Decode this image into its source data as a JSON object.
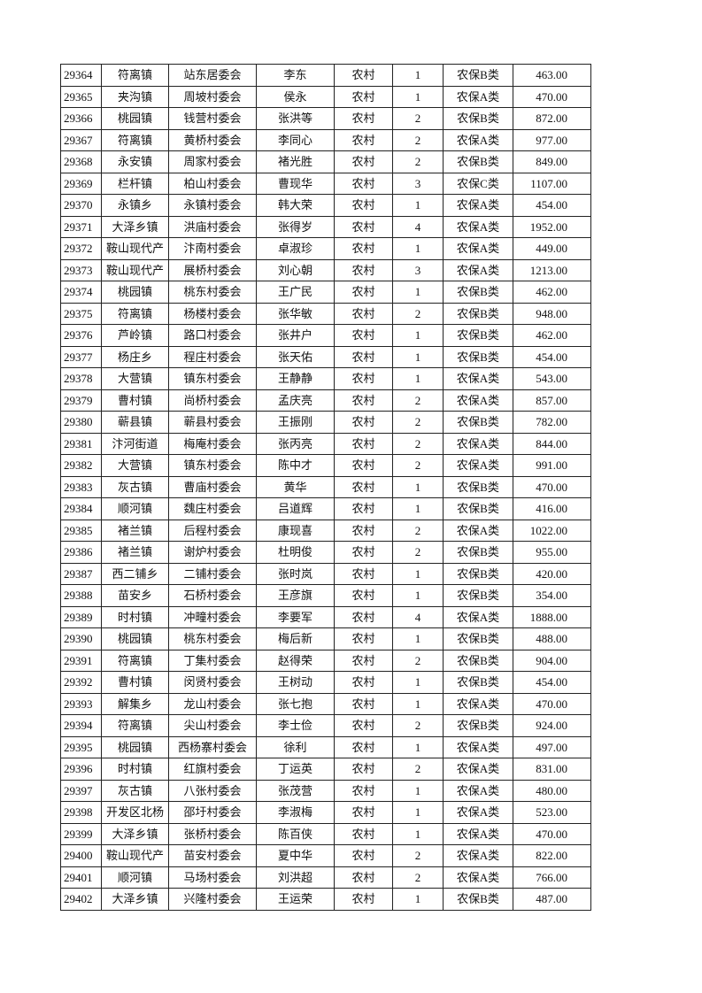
{
  "rows": [
    [
      "29364",
      "符离镇",
      "站东居委会",
      "李东",
      "农村",
      "1",
      "农保B类",
      "463.00"
    ],
    [
      "29365",
      "夹沟镇",
      "周坡村委会",
      "侯永",
      "农村",
      "1",
      "农保A类",
      "470.00"
    ],
    [
      "29366",
      "桃园镇",
      "钱营村委会",
      "张洪等",
      "农村",
      "2",
      "农保B类",
      "872.00"
    ],
    [
      "29367",
      "符离镇",
      "黄桥村委会",
      "李同心",
      "农村",
      "2",
      "农保A类",
      "977.00"
    ],
    [
      "29368",
      "永安镇",
      "周家村委会",
      "褚光胜",
      "农村",
      "2",
      "农保B类",
      "849.00"
    ],
    [
      "29369",
      "栏杆镇",
      "柏山村委会",
      "曹现华",
      "农村",
      "3",
      "农保C类",
      "1107.00"
    ],
    [
      "29370",
      "永镇乡",
      "永镇村委会",
      "韩大荣",
      "农村",
      "1",
      "农保A类",
      "454.00"
    ],
    [
      "29371",
      "大泽乡镇",
      "洪庙村委会",
      "张得岁",
      "农村",
      "4",
      "农保A类",
      "1952.00"
    ],
    [
      "29372",
      "鞍山现代产",
      "汴南村委会",
      "卓淑珍",
      "农村",
      "1",
      "农保A类",
      "449.00"
    ],
    [
      "29373",
      "鞍山现代产",
      "展桥村委会",
      "刘心朝",
      "农村",
      "3",
      "农保A类",
      "1213.00"
    ],
    [
      "29374",
      "桃园镇",
      "桃东村委会",
      "王广民",
      "农村",
      "1",
      "农保B类",
      "462.00"
    ],
    [
      "29375",
      "符离镇",
      "杨楼村委会",
      "张华敏",
      "农村",
      "2",
      "农保B类",
      "948.00"
    ],
    [
      "29376",
      "芦岭镇",
      "路口村委会",
      "张井户",
      "农村",
      "1",
      "农保B类",
      "462.00"
    ],
    [
      "29377",
      "杨庄乡",
      "程庄村委会",
      "张天佑",
      "农村",
      "1",
      "农保B类",
      "454.00"
    ],
    [
      "29378",
      "大营镇",
      "镇东村委会",
      "王静静",
      "农村",
      "1",
      "农保A类",
      "543.00"
    ],
    [
      "29379",
      "曹村镇",
      "尚桥村委会",
      "孟庆亮",
      "农村",
      "2",
      "农保A类",
      "857.00"
    ],
    [
      "29380",
      "蕲县镇",
      "蕲县村委会",
      "王振刚",
      "农村",
      "2",
      "农保B类",
      "782.00"
    ],
    [
      "29381",
      "汴河街道",
      "梅庵村委会",
      "张丙亮",
      "农村",
      "2",
      "农保A类",
      "844.00"
    ],
    [
      "29382",
      "大营镇",
      "镇东村委会",
      "陈中才",
      "农村",
      "2",
      "农保A类",
      "991.00"
    ],
    [
      "29383",
      "灰古镇",
      "曹庙村委会",
      "黄华",
      "农村",
      "1",
      "农保B类",
      "470.00"
    ],
    [
      "29384",
      "顺河镇",
      "魏庄村委会",
      "吕道辉",
      "农村",
      "1",
      "农保B类",
      "416.00"
    ],
    [
      "29385",
      "褚兰镇",
      "后程村委会",
      "康现喜",
      "农村",
      "2",
      "农保A类",
      "1022.00"
    ],
    [
      "29386",
      "褚兰镇",
      "谢炉村委会",
      "杜明俊",
      "农村",
      "2",
      "农保B类",
      "955.00"
    ],
    [
      "29387",
      "西二铺乡",
      "二铺村委会",
      "张时岚",
      "农村",
      "1",
      "农保B类",
      "420.00"
    ],
    [
      "29388",
      "苗安乡",
      "石桥村委会",
      "王彦旗",
      "农村",
      "1",
      "农保B类",
      "354.00"
    ],
    [
      "29389",
      "时村镇",
      "冲疃村委会",
      "李要军",
      "农村",
      "4",
      "农保A类",
      "1888.00"
    ],
    [
      "29390",
      "桃园镇",
      "桃东村委会",
      "梅后新",
      "农村",
      "1",
      "农保B类",
      "488.00"
    ],
    [
      "29391",
      "符离镇",
      "丁集村委会",
      "赵得荣",
      "农村",
      "2",
      "农保B类",
      "904.00"
    ],
    [
      "29392",
      "曹村镇",
      "闵贤村委会",
      "王树动",
      "农村",
      "1",
      "农保B类",
      "454.00"
    ],
    [
      "29393",
      "解集乡",
      "龙山村委会",
      "张七抱",
      "农村",
      "1",
      "农保A类",
      "470.00"
    ],
    [
      "29394",
      "符离镇",
      "尖山村委会",
      "李士俭",
      "农村",
      "2",
      "农保B类",
      "924.00"
    ],
    [
      "29395",
      "桃园镇",
      "西杨寨村委会",
      "徐利",
      "农村",
      "1",
      "农保A类",
      "497.00"
    ],
    [
      "29396",
      "时村镇",
      "红旗村委会",
      "丁运英",
      "农村",
      "2",
      "农保A类",
      "831.00"
    ],
    [
      "29397",
      "灰古镇",
      "八张村委会",
      "张茂营",
      "农村",
      "1",
      "农保A类",
      "480.00"
    ],
    [
      "29398",
      "开发区北杨",
      "邵圩村委会",
      "李淑梅",
      "农村",
      "1",
      "农保A类",
      "523.00"
    ],
    [
      "29399",
      "大泽乡镇",
      "张桥村委会",
      "陈百侠",
      "农村",
      "1",
      "农保A类",
      "470.00"
    ],
    [
      "29400",
      "鞍山现代产",
      "苗安村委会",
      "夏中华",
      "农村",
      "2",
      "农保A类",
      "822.00"
    ],
    [
      "29401",
      "顺河镇",
      "马场村委会",
      "刘洪超",
      "农村",
      "2",
      "农保A类",
      "766.00"
    ],
    [
      "29402",
      "大泽乡镇",
      "兴隆村委会",
      "王运荣",
      "农村",
      "1",
      "农保B类",
      "487.00"
    ]
  ]
}
